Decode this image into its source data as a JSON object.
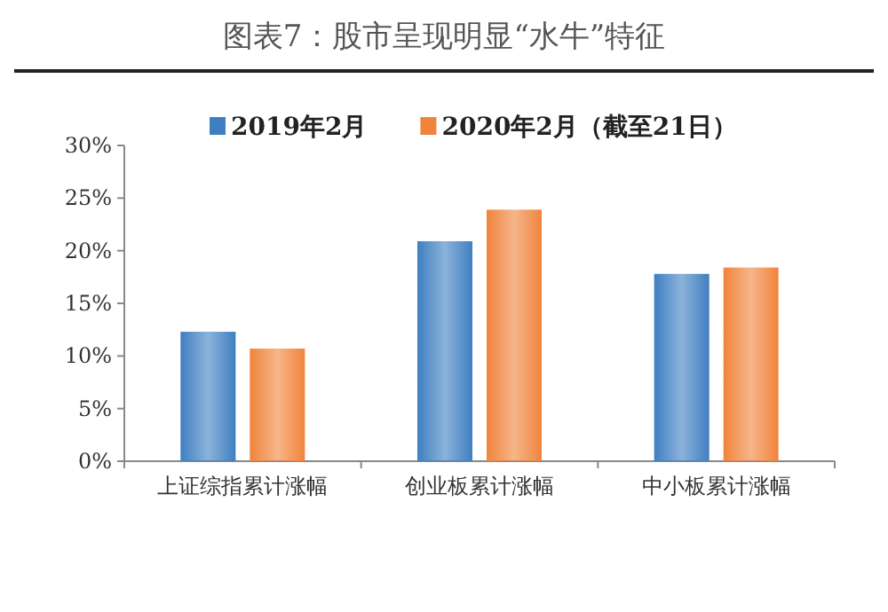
{
  "chart_data": {
    "type": "bar",
    "title": "图表7：股市呈现明显“水牛”特征",
    "categories": [
      "上证综指累计涨幅",
      "创业板累计涨幅",
      "中小板累计涨幅"
    ],
    "series": [
      {
        "name": "2019年2月",
        "color": "#3f7fc1",
        "values": [
          12.3,
          20.9,
          17.8
        ]
      },
      {
        "name": "2020年2月（截至21日）",
        "color": "#f0843c",
        "values": [
          10.7,
          23.9,
          18.4
        ]
      }
    ],
    "ylim": [
      0,
      30
    ],
    "yticks": [
      {
        "value": 0,
        "label": "0%"
      },
      {
        "value": 5,
        "label": "5%"
      },
      {
        "value": 10,
        "label": "10%"
      },
      {
        "value": 15,
        "label": "15%"
      },
      {
        "value": 20,
        "label": "20%"
      },
      {
        "value": 25,
        "label": "25%"
      },
      {
        "value": 30,
        "label": "30%"
      }
    ],
    "legend": "top",
    "grid": false
  }
}
